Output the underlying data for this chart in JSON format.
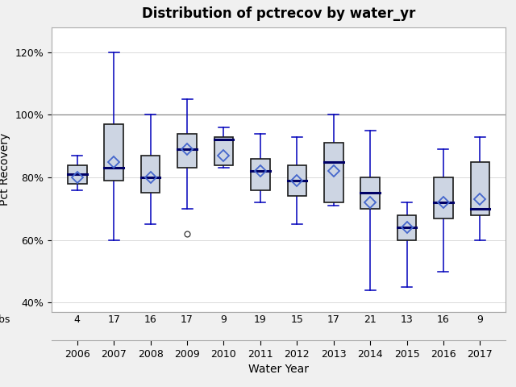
{
  "title": "Distribution of pctrecov by water_yr",
  "xlabel": "Water Year",
  "ylabel": "Pct Recovery",
  "years": [
    2006,
    2007,
    2008,
    2009,
    2010,
    2011,
    2012,
    2013,
    2014,
    2015,
    2016,
    2017
  ],
  "nobs": [
    4,
    17,
    16,
    17,
    9,
    19,
    15,
    17,
    21,
    13,
    16,
    9
  ],
  "whislo": [
    76,
    60,
    65,
    70,
    83,
    72,
    65,
    71,
    44,
    45,
    50,
    60
  ],
  "q1": [
    78,
    79,
    75,
    83,
    84,
    76,
    74,
    72,
    70,
    60,
    67,
    68
  ],
  "med": [
    81,
    83,
    80,
    89,
    92,
    82,
    79,
    85,
    75,
    64,
    72,
    70
  ],
  "q3": [
    84,
    97,
    87,
    94,
    93,
    86,
    84,
    91,
    80,
    68,
    80,
    85
  ],
  "whishi": [
    87,
    120,
    100,
    105,
    96,
    94,
    93,
    100,
    95,
    72,
    89,
    93
  ],
  "mean": [
    80,
    85,
    80,
    89,
    87,
    82,
    79,
    82,
    72,
    64,
    72,
    73
  ],
  "fliers": [
    [],
    [],
    [],
    [
      62
    ],
    [],
    [],
    [],
    [],
    [],
    [],
    [],
    []
  ],
  "ref_line": 100,
  "box_facecolor": "#cdd5e3",
  "box_edgecolor": "#1a1a1a",
  "whisker_color": "#0000bb",
  "median_color": "#000066",
  "mean_marker_color": "#4466cc",
  "flier_color": "#333333",
  "ylim": [
    37,
    128
  ],
  "yticks": [
    40,
    60,
    80,
    100,
    120
  ],
  "yticklabels": [
    "40%",
    "60%",
    "80%",
    "100%",
    "120%"
  ],
  "plot_bg": "#ffffff",
  "fig_bg": "#f0f0f0",
  "title_fontsize": 12,
  "axis_label_fontsize": 10,
  "tick_fontsize": 9,
  "nobs_fontsize": 9,
  "box_width": 0.52,
  "cap_ratio": 0.55
}
